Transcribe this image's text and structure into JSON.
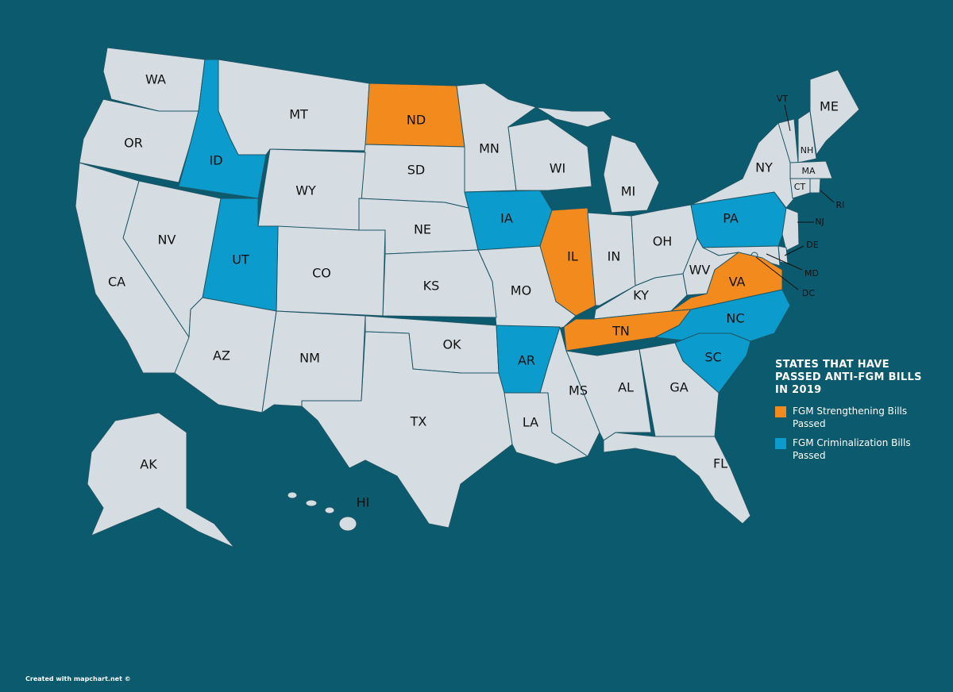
{
  "title": "STATES THAT HAVE PASSED ANTI-FGM BILLS IN 2019",
  "legend": [
    {
      "label": "FGM Strengthening Bills Passed",
      "color": "#f28a1e"
    },
    {
      "label": "FGM Criminalization Bills Passed",
      "color": "#0b9ccd"
    }
  ],
  "base_color": "#d5dde2",
  "credit": "Created with mapchart.net ©",
  "states": [
    {
      "label": "WA"
    },
    {
      "label": "OR"
    },
    {
      "label": "ID",
      "group": 1
    },
    {
      "label": "MT"
    },
    {
      "label": "ND",
      "group": 0
    },
    {
      "label": "MN"
    },
    {
      "label": "WI"
    },
    {
      "label": "MI"
    },
    {
      "label": "SD"
    },
    {
      "label": "WY"
    },
    {
      "label": "NE"
    },
    {
      "label": "IA",
      "group": 1
    },
    {
      "label": "IL",
      "group": 0
    },
    {
      "label": "IN"
    },
    {
      "label": "OH"
    },
    {
      "label": "PA",
      "group": 1
    },
    {
      "label": "NY"
    },
    {
      "label": "VT"
    },
    {
      "label": "NH"
    },
    {
      "label": "ME"
    },
    {
      "label": "MA"
    },
    {
      "label": "CT"
    },
    {
      "label": "RI"
    },
    {
      "label": "NJ"
    },
    {
      "label": "DE"
    },
    {
      "label": "MD"
    },
    {
      "label": "DC"
    },
    {
      "label": "WV"
    },
    {
      "label": "VA",
      "group": 0
    },
    {
      "label": "KY"
    },
    {
      "label": "TN",
      "group": 0
    },
    {
      "label": "NC",
      "group": 1
    },
    {
      "label": "SC",
      "group": 1
    },
    {
      "label": "MO"
    },
    {
      "label": "KS"
    },
    {
      "label": "CO"
    },
    {
      "label": "UT",
      "group": 1
    },
    {
      "label": "NV"
    },
    {
      "label": "CA"
    },
    {
      "label": "AZ"
    },
    {
      "label": "NM"
    },
    {
      "label": "OK"
    },
    {
      "label": "TX"
    },
    {
      "label": "AR",
      "group": 1
    },
    {
      "label": "LA"
    },
    {
      "label": "MS"
    },
    {
      "label": "AL"
    },
    {
      "label": "GA"
    },
    {
      "label": "FL"
    },
    {
      "label": "AK"
    },
    {
      "label": "HI"
    }
  ]
}
